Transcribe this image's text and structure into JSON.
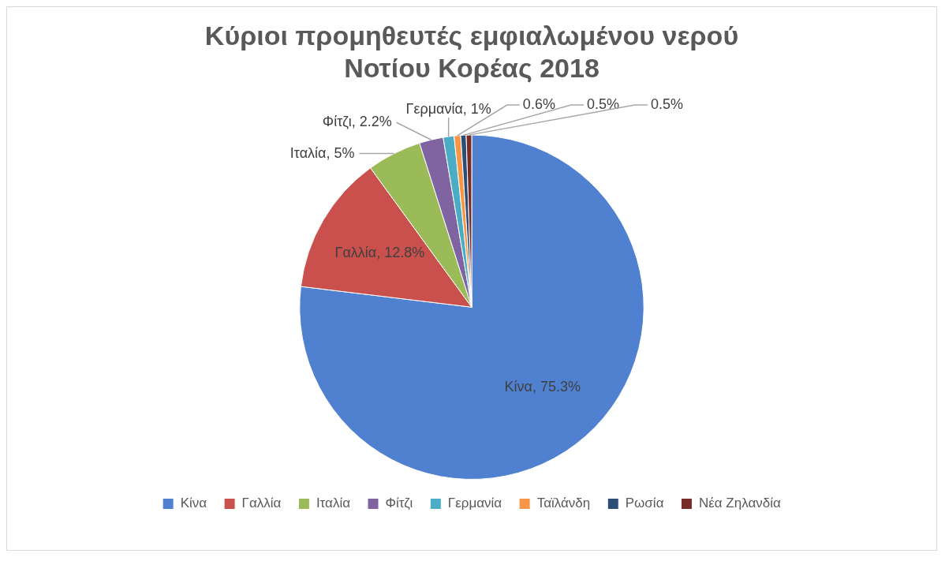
{
  "chart_data": {
    "type": "pie",
    "title": "Κύριοι προμηθευτές εμφιαλωμένου νερού Νοτίου Κορέας 2018",
    "categories": [
      "Κίνα",
      "Γαλλία",
      "Ιταλία",
      "Φίτζι",
      "Γερμανία",
      "Ταϊλάνδη",
      "Ρωσία",
      "Νέα Ζηλανδία"
    ],
    "values": [
      75.3,
      12.8,
      5,
      2.2,
      1,
      0.6,
      0.5,
      0.5
    ],
    "colors": [
      "#4f81d0",
      "#c9504c",
      "#9bbb59",
      "#8064a2",
      "#4bacc6",
      "#f79646",
      "#2c4d75",
      "#772c2a"
    ],
    "value_labels": [
      "Κίνα, 75.3%",
      "Γαλλία, 12.8%",
      "Ιταλία, 5%",
      "Φίτζι, 2.2%",
      "Γερμανία, 1%",
      "0.6%",
      "0.5%",
      "0.5%"
    ],
    "legend": "bottom"
  }
}
